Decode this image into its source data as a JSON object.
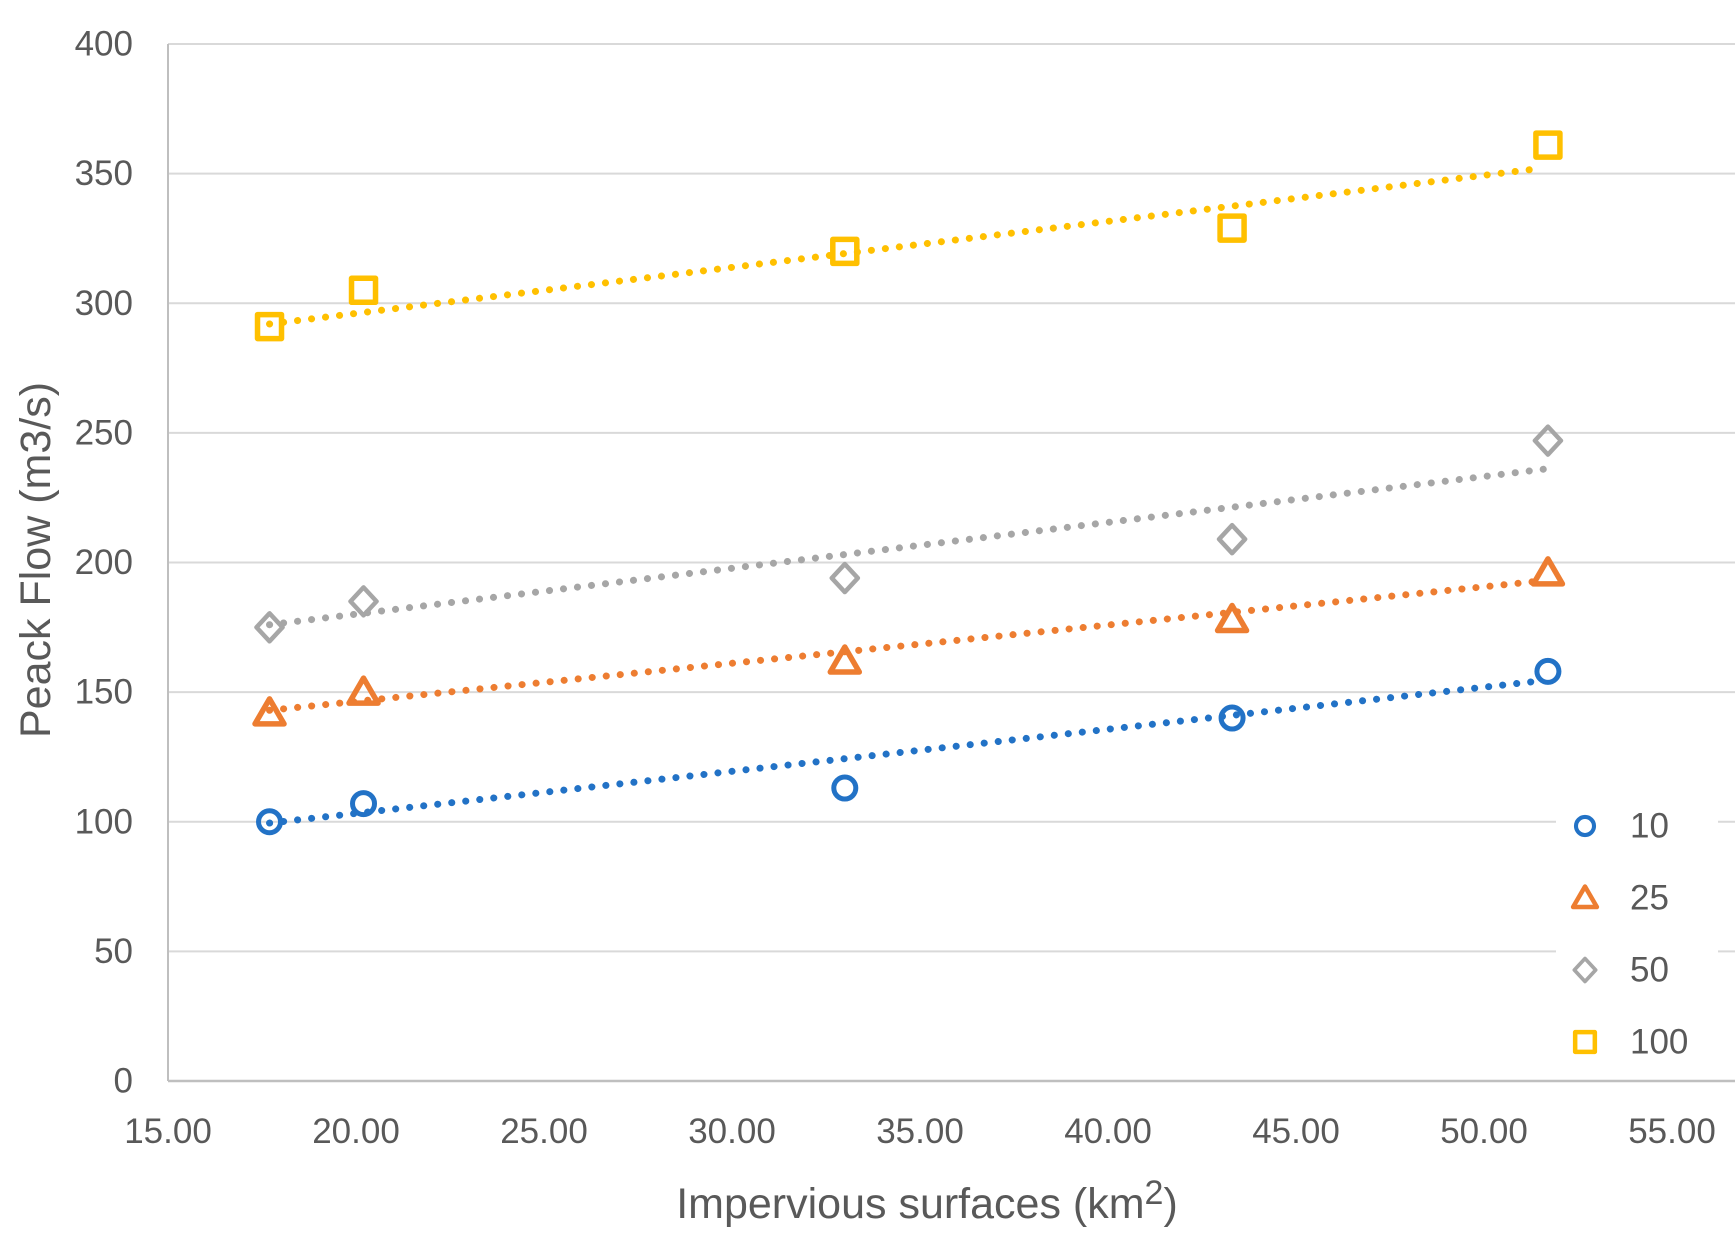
{
  "chart_data": {
    "type": "scatter",
    "title": "",
    "xlabel_main": "Impervious surfaces (km",
    "xlabel_sup": "2",
    "xlabel_close": ")",
    "ylabel": "Peack Flow (m3/s)",
    "xlim": [
      15,
      55
    ],
    "ylim": [
      0,
      400
    ],
    "grid": "horizontal",
    "grid_color": "#D9D9D9",
    "axis_color": "#BFBFBF",
    "text_color": "#595959",
    "x_ticks": [
      {
        "v": 15,
        "label": "15.00"
      },
      {
        "v": 20,
        "label": "20.00"
      },
      {
        "v": 25,
        "label": "25.00"
      },
      {
        "v": 30,
        "label": "30.00"
      },
      {
        "v": 35,
        "label": "35.00"
      },
      {
        "v": 40,
        "label": "40.00"
      },
      {
        "v": 45,
        "label": "45.00"
      },
      {
        "v": 50,
        "label": "50.00"
      },
      {
        "v": 55,
        "label": "55.00"
      }
    ],
    "y_ticks": [
      {
        "v": 0,
        "label": "0"
      },
      {
        "v": 50,
        "label": "50"
      },
      {
        "v": 100,
        "label": "100"
      },
      {
        "v": 150,
        "label": "150"
      },
      {
        "v": 200,
        "label": "200"
      },
      {
        "v": 250,
        "label": "250"
      },
      {
        "v": 300,
        "label": "300"
      },
      {
        "v": 350,
        "label": "350"
      },
      {
        "v": 400,
        "label": "400"
      }
    ],
    "legend": {
      "position": "right",
      "entries": [
        "10",
        "25",
        "50",
        "100"
      ]
    },
    "series": [
      {
        "name": "10",
        "marker": "circle",
        "color": "#2272C6",
        "points": [
          [
            17.7,
            100
          ],
          [
            20.2,
            107
          ],
          [
            33.0,
            113
          ],
          [
            43.3,
            140
          ],
          [
            51.7,
            158
          ]
        ],
        "trend": {
          "start": [
            17.7,
            99.5
          ],
          "end": [
            51.6,
            154.5
          ]
        }
      },
      {
        "name": "25",
        "marker": "triangle",
        "color": "#ED7D31",
        "points": [
          [
            17.7,
            142
          ],
          [
            20.2,
            150
          ],
          [
            33.0,
            162
          ],
          [
            43.3,
            178
          ],
          [
            51.7,
            196
          ]
        ],
        "trend": {
          "start": [
            17.7,
            143
          ],
          "end": [
            51.6,
            193
          ]
        }
      },
      {
        "name": "50",
        "marker": "diamond",
        "color": "#A6A6A6",
        "points": [
          [
            17.7,
            175
          ],
          [
            20.2,
            185
          ],
          [
            33.0,
            194
          ],
          [
            43.3,
            209
          ],
          [
            51.7,
            247
          ]
        ],
        "trend": {
          "start": [
            17.7,
            176
          ],
          "end": [
            51.6,
            236
          ]
        }
      },
      {
        "name": "100",
        "marker": "square",
        "color": "#FFC000",
        "points": [
          [
            17.7,
            291
          ],
          [
            20.2,
            305
          ],
          [
            33.0,
            320
          ],
          [
            43.3,
            329
          ],
          [
            51.7,
            361
          ]
        ],
        "trend": {
          "start": [
            17.7,
            292
          ],
          "end": [
            51.5,
            352
          ]
        }
      }
    ]
  }
}
